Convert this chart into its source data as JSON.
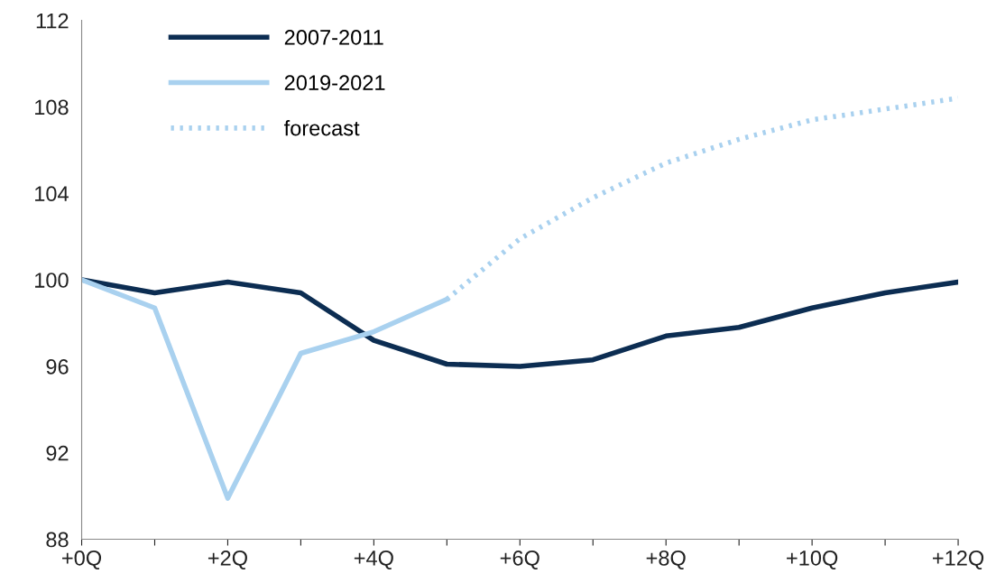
{
  "chart_data": {
    "type": "line",
    "categories": [
      "+0Q",
      null,
      "+2Q",
      null,
      "+4Q",
      null,
      "+6Q",
      null,
      "+8Q",
      null,
      "+10Q",
      null,
      "+12Q"
    ],
    "series": [
      {
        "name": "2007-2011",
        "color": "#0c2d52",
        "line_style": "solid",
        "values": [
          100,
          99.4,
          99.9,
          99.4,
          97.2,
          96.1,
          96.0,
          96.3,
          97.4,
          97.8,
          98.7,
          99.4,
          99.9
        ]
      },
      {
        "name": "2019-2021",
        "color": "#a9d1ef",
        "line_style": "solid",
        "values": [
          100,
          98.7,
          89.9,
          96.6,
          97.6,
          99.1,
          null,
          null,
          null,
          null,
          null,
          null,
          null
        ]
      },
      {
        "name": "forecast",
        "color": "#a9d1ef",
        "line_style": "dotted",
        "values": [
          null,
          null,
          null,
          null,
          null,
          99.1,
          101.9,
          103.8,
          105.4,
          106.5,
          107.4,
          107.9,
          108.4
        ]
      }
    ],
    "ylim": [
      88,
      112
    ],
    "yticks": [
      88,
      92,
      96,
      100,
      104,
      108,
      112
    ],
    "grid": false,
    "legend": "top left",
    "marker": "none"
  }
}
